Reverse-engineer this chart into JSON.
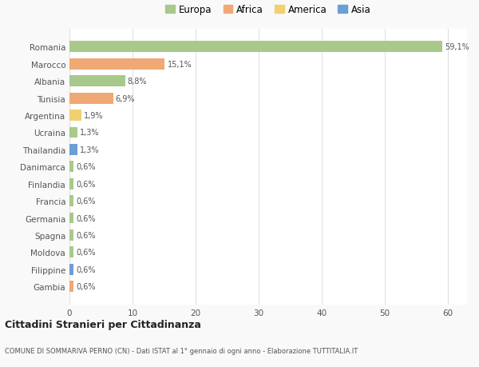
{
  "countries": [
    "Romania",
    "Marocco",
    "Albania",
    "Tunisia",
    "Argentina",
    "Ucraina",
    "Thailandia",
    "Danimarca",
    "Finlandia",
    "Francia",
    "Germania",
    "Spagna",
    "Moldova",
    "Filippine",
    "Gambia"
  ],
  "values": [
    59.1,
    15.1,
    8.8,
    6.9,
    1.9,
    1.3,
    1.3,
    0.6,
    0.6,
    0.6,
    0.6,
    0.6,
    0.6,
    0.6,
    0.6
  ],
  "labels": [
    "59,1%",
    "15,1%",
    "8,8%",
    "6,9%",
    "1,9%",
    "1,3%",
    "1,3%",
    "0,6%",
    "0,6%",
    "0,6%",
    "0,6%",
    "0,6%",
    "0,6%",
    "0,6%",
    "0,6%"
  ],
  "continents": [
    "Europa",
    "Africa",
    "Europa",
    "Africa",
    "America",
    "Europa",
    "Asia",
    "Europa",
    "Europa",
    "Europa",
    "Europa",
    "Europa",
    "Europa",
    "Asia",
    "Africa"
  ],
  "continent_colors": {
    "Europa": "#a8c98a",
    "Africa": "#f0a875",
    "America": "#f0d070",
    "Asia": "#6b9fd4"
  },
  "legend_items": [
    "Europa",
    "Africa",
    "America",
    "Asia"
  ],
  "legend_colors": [
    "#a8c98a",
    "#f0a875",
    "#f0d070",
    "#6b9fd4"
  ],
  "title": "Cittadini Stranieri per Cittadinanza",
  "subtitle": "COMUNE DI SOMMARIVA PERNO (CN) - Dati ISTAT al 1° gennaio di ogni anno - Elaborazione TUTTITALIA.IT",
  "xlim": [
    0,
    63
  ],
  "xticks": [
    0,
    10,
    20,
    30,
    40,
    50,
    60
  ],
  "bg_color": "#f9f9f9",
  "bar_bg_color": "#ffffff",
  "grid_color": "#e0e0e0"
}
